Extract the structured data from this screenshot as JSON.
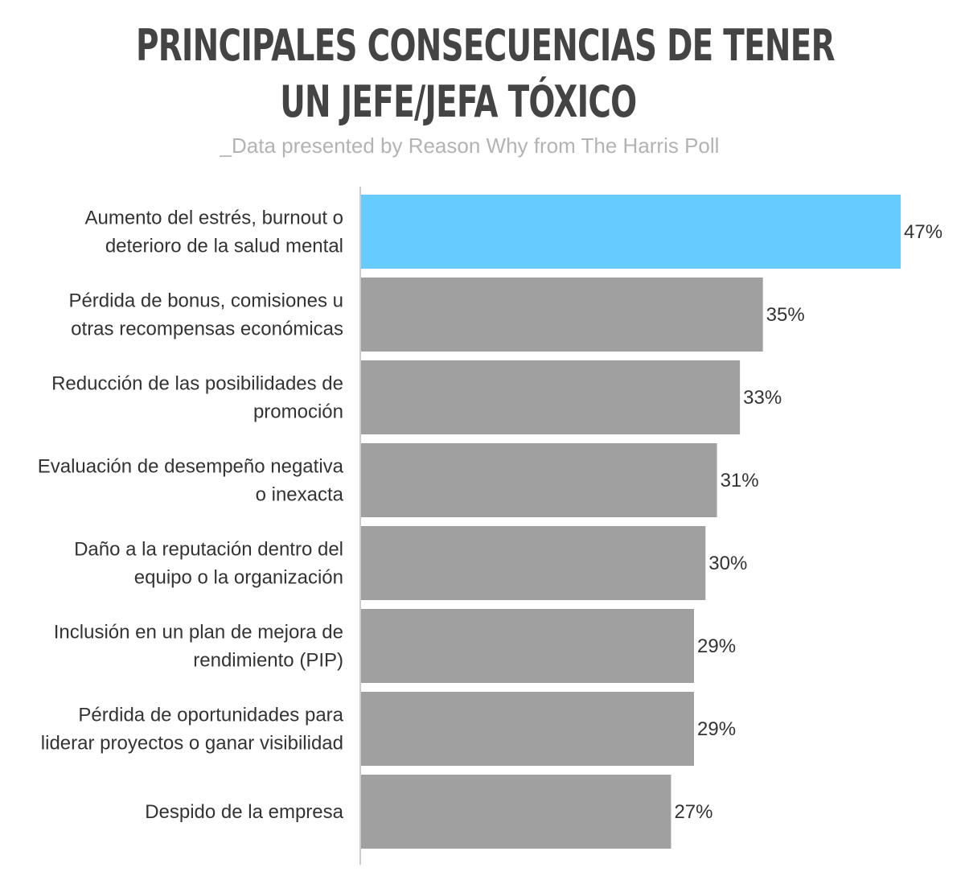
{
  "chart_data": {
    "type": "bar",
    "orientation": "horizontal",
    "title": [
      "PRINCIPALES CONSECUENCIAS DE TENER",
      "UN JEFE/JEFA TÓXICO"
    ],
    "subtitle": "_Data presented by Reason Why from The Harris Poll",
    "categories": [
      [
        "Aumento del estrés, burnout o",
        "deterioro de la salud mental"
      ],
      [
        "Pérdida de bonus, comisiones u",
        "otras recompensas económicas"
      ],
      [
        "Reducción de las posibilidades de",
        "promoción"
      ],
      [
        "Evaluación de desempeño negativa",
        "o inexacta"
      ],
      [
        "Daño a la reputación dentro del",
        "equipo o la organización"
      ],
      [
        "Inclusión en un plan de mejora de",
        "rendimiento (PIP)"
      ],
      [
        "Pérdida de oportunidades para",
        "liderar proyectos o ganar visibilidad"
      ],
      [
        "Despido de la empresa"
      ]
    ],
    "values": [
      47,
      35,
      33,
      31,
      30,
      29,
      29,
      27
    ],
    "value_labels": [
      "47%",
      "35%",
      "33%",
      "31%",
      "30%",
      "29%",
      "29%",
      "27%"
    ],
    "unit": "%",
    "xlim": [
      0,
      47
    ],
    "grid": false,
    "colors": {
      "highlight": "#66ccff",
      "default": "#a0a0a0",
      "axis": "#cccccc",
      "title": "#444444",
      "subtitle": "#b3b3b3",
      "text": "#333333"
    },
    "highlight_index": 0
  }
}
